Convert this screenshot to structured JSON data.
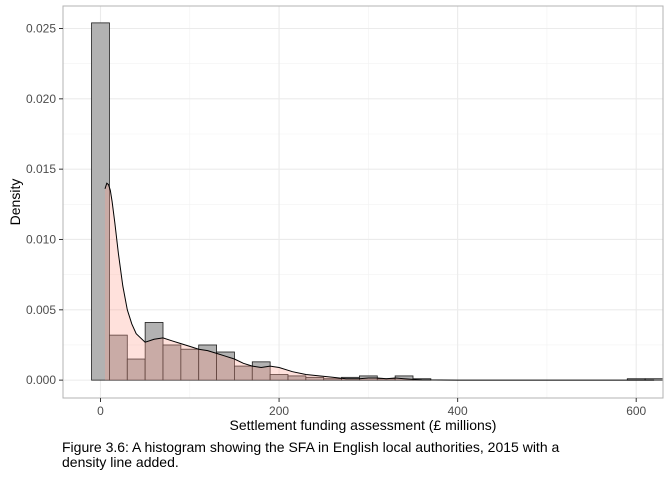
{
  "chart_data": {
    "type": "bar",
    "xlabel": "Settlement funding assessment (£ millions)",
    "ylabel": "Density",
    "xlim": [
      -42,
      630
    ],
    "ylim": [
      -0.00127,
      0.0266
    ],
    "x_ticks": [
      0,
      200,
      400,
      600
    ],
    "x_tick_labels": [
      "0",
      "200",
      "400",
      "600"
    ],
    "y_ticks": [
      0,
      0.005,
      0.01,
      0.015,
      0.02,
      0.025
    ],
    "y_tick_labels": [
      "0.000",
      "0.005",
      "0.010",
      "0.015",
      "0.020",
      "0.025"
    ],
    "grid": true,
    "histogram": {
      "bin_width": 20,
      "bin_centers": [
        0,
        20,
        40,
        60,
        80,
        100,
        120,
        140,
        160,
        180,
        200,
        220,
        240,
        260,
        280,
        300,
        320,
        340,
        360,
        600,
        620
      ],
      "density": [
        0.0254,
        0.0032,
        0.0015,
        0.0041,
        0.0025,
        0.0022,
        0.0025,
        0.002,
        0.001,
        0.0013,
        0.0004,
        0.0003,
        0.0002,
        0.0001,
        0.0002,
        0.0003,
        0.0001,
        0.0003,
        0.0001,
        0.0001,
        0.0001
      ]
    },
    "density_line": {
      "x": [
        5,
        7,
        9,
        11,
        13,
        16,
        20,
        25,
        30,
        35,
        40,
        50,
        60,
        70,
        80,
        90,
        100,
        110,
        120,
        130,
        140,
        150,
        160,
        170,
        180,
        190,
        200,
        215,
        230,
        245,
        260,
        275,
        290,
        300,
        310,
        320,
        330,
        340,
        350,
        360,
        380,
        400,
        450,
        500,
        550,
        600,
        620
      ],
      "y": [
        0.0136,
        0.014,
        0.0139,
        0.0135,
        0.0127,
        0.0112,
        0.009,
        0.0067,
        0.005,
        0.004,
        0.0033,
        0.0027,
        0.0029,
        0.003,
        0.0028,
        0.0026,
        0.0024,
        0.0022,
        0.0021,
        0.0019,
        0.0017,
        0.0015,
        0.0012,
        0.001,
        0.0009,
        0.001,
        0.0009,
        0.0006,
        0.0004,
        0.0003,
        0.0002,
        0.0001,
        0.0001,
        0.00015,
        0.00015,
        0.0001,
        0.00015,
        0.0001,
        5e-05,
        2e-05,
        1e-05,
        0.0,
        0.0,
        0.0,
        0.0,
        0.0,
        0.0
      ]
    },
    "colors": {
      "bar_fill": "#b2b2b2",
      "bar_stroke": "#1a1a1a",
      "density_fill": "#ff9a8a",
      "density_line": "#000000",
      "grid": "#ebebeb",
      "panel_border": "#b3b3b3"
    }
  },
  "caption": "Figure 3.6: A histogram showing the SFA in English local authorities, 2015 with a density line added."
}
